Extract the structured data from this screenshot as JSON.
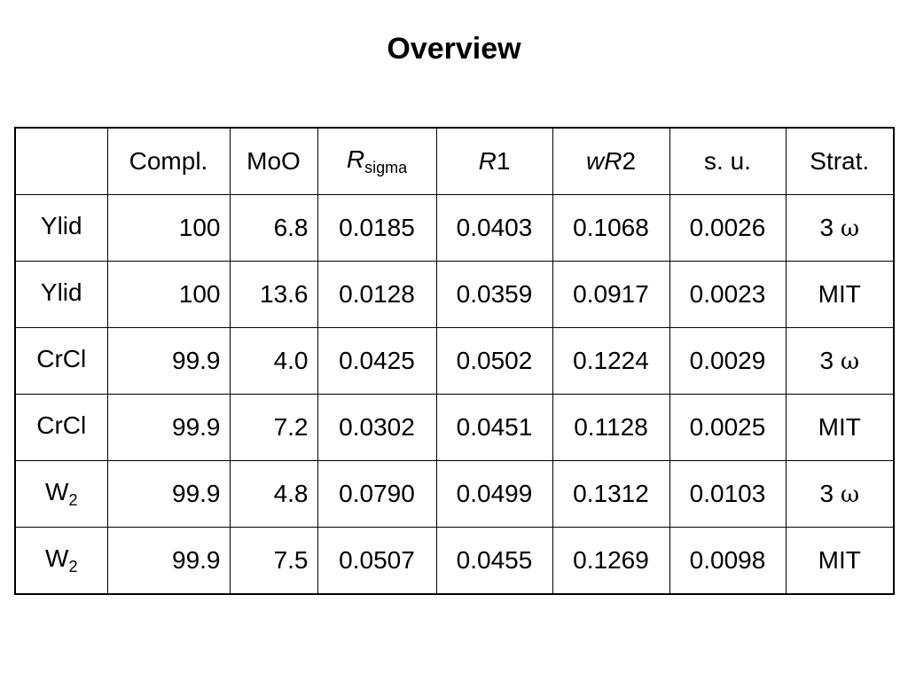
{
  "title": "Overview",
  "table": {
    "headers": {
      "compl": "Compl.",
      "moo": "MoO",
      "rsigma_main": "R",
      "rsigma_sub": "sigma",
      "r1_main": "R",
      "r1_suffix": "1",
      "wr2_prefix": "w",
      "wr2_main": "R",
      "wr2_suffix": "2",
      "su": "s. u.",
      "strat": "Strat."
    },
    "rows": [
      {
        "name": "Ylid",
        "name_sub": "",
        "compl": "100",
        "moo": "6.8",
        "rsigma": "0.0185",
        "r1": "0.0403",
        "wr2": "0.1068",
        "su": "0.0026",
        "strat_prefix": "3",
        "strat_symbol": "ω"
      },
      {
        "name": "Ylid",
        "name_sub": "",
        "compl": "100",
        "moo": "13.6",
        "rsigma": "0.0128",
        "r1": "0.0359",
        "wr2": "0.0917",
        "su": "0.0023",
        "strat_prefix": "MIT",
        "strat_symbol": ""
      },
      {
        "name": "CrCl",
        "name_sub": "",
        "compl": "99.9",
        "moo": "4.0",
        "rsigma": "0.0425",
        "r1": "0.0502",
        "wr2": "0.1224",
        "su": "0.0029",
        "strat_prefix": "3",
        "strat_symbol": "ω"
      },
      {
        "name": "CrCl",
        "name_sub": "",
        "compl": "99.9",
        "moo": "7.2",
        "rsigma": "0.0302",
        "r1": "0.0451",
        "wr2": "0.1128",
        "su": "0.0025",
        "strat_prefix": "MIT",
        "strat_symbol": ""
      },
      {
        "name": "W",
        "name_sub": "2",
        "compl": "99.9",
        "moo": "4.8",
        "rsigma": "0.0790",
        "r1": "0.0499",
        "wr2": "0.1312",
        "su": "0.0103",
        "strat_prefix": "3",
        "strat_symbol": "ω"
      },
      {
        "name": "W",
        "name_sub": "2",
        "compl": "99.9",
        "moo": "7.5",
        "rsigma": "0.0507",
        "r1": "0.0455",
        "wr2": "0.1269",
        "su": "0.0098",
        "strat_prefix": "MIT",
        "strat_symbol": ""
      }
    ]
  }
}
